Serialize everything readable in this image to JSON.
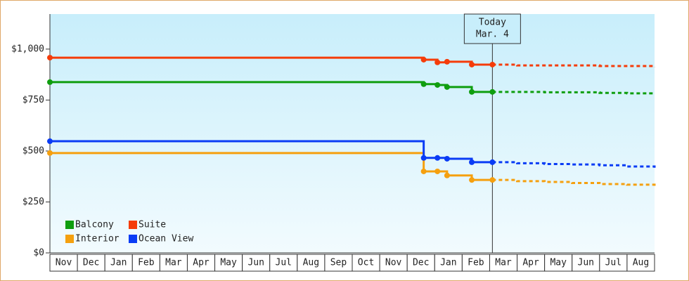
{
  "chart_data": {
    "type": "line",
    "x": [
      0,
      13.6,
      14.1,
      14.45,
      15.35,
      16.1,
      17,
      18,
      19,
      20,
      21,
      22
    ],
    "xlim": [
      0,
      22
    ],
    "xticks": [
      {
        "value": 0.5,
        "label": "Nov"
      },
      {
        "value": 1.5,
        "label": "Dec"
      },
      {
        "value": 2.5,
        "label": "Jan"
      },
      {
        "value": 3.5,
        "label": "Feb"
      },
      {
        "value": 4.5,
        "label": "Mar"
      },
      {
        "value": 5.5,
        "label": "Apr"
      },
      {
        "value": 6.5,
        "label": "May"
      },
      {
        "value": 7.5,
        "label": "Jun"
      },
      {
        "value": 8.5,
        "label": "Jul"
      },
      {
        "value": 9.5,
        "label": "Aug"
      },
      {
        "value": 10.5,
        "label": "Sep"
      },
      {
        "value": 11.5,
        "label": "Oct"
      },
      {
        "value": 12.5,
        "label": "Nov"
      },
      {
        "value": 13.5,
        "label": "Dec"
      },
      {
        "value": 14.5,
        "label": "Jan"
      },
      {
        "value": 15.5,
        "label": "Feb"
      },
      {
        "value": 16.5,
        "label": "Mar"
      },
      {
        "value": 17.5,
        "label": "Apr"
      },
      {
        "value": 18.5,
        "label": "May"
      },
      {
        "value": 19.5,
        "label": "Jun"
      },
      {
        "value": 20.5,
        "label": "Jul"
      },
      {
        "value": 21.5,
        "label": "Aug"
      }
    ],
    "ylim": [
      0,
      1172
    ],
    "yticks": [
      {
        "value": 0,
        "label": "$0"
      },
      {
        "value": 250,
        "label": "$250"
      },
      {
        "value": 500,
        "label": "$500"
      },
      {
        "value": 750,
        "label": "$750"
      },
      {
        "value": 1000,
        "label": "$1,000"
      }
    ],
    "today": {
      "x": 16.1,
      "label": [
        "Today",
        "Mar. 4"
      ]
    },
    "legend": "lower left",
    "series": [
      {
        "name": "Balcony",
        "color": "#0f9e0f",
        "values": [
          838,
          828,
          824,
          814,
          790,
          790,
          790,
          788,
          788,
          785,
          783,
          780
        ]
      },
      {
        "name": "Suite",
        "color": "#f53c0a",
        "values": [
          958,
          948,
          935,
          938,
          924,
          924,
          920,
          920,
          920,
          917,
          917,
          912
        ]
      },
      {
        "name": "Interior",
        "color": "#f5a00f",
        "values": [
          490,
          400,
          400,
          380,
          358,
          358,
          352,
          348,
          343,
          338,
          335,
          328
        ]
      },
      {
        "name": "Ocean View",
        "color": "#0a3cf5",
        "values": [
          548,
          466,
          466,
          462,
          445,
          445,
          440,
          436,
          434,
          430,
          424,
          418
        ]
      }
    ]
  }
}
